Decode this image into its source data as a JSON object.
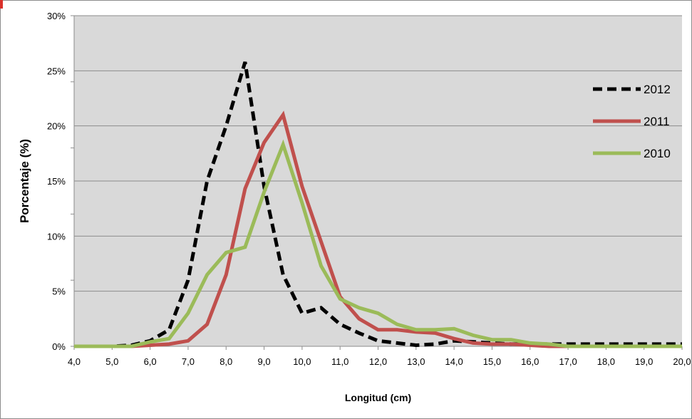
{
  "chart_data": {
    "type": "line",
    "title": "",
    "xlabel": "Longitud (cm)",
    "ylabel": "Porcentaje (%)",
    "x": [
      4.0,
      4.5,
      5.0,
      5.5,
      6.0,
      6.5,
      7.0,
      7.5,
      8.0,
      8.5,
      9.0,
      9.5,
      10.0,
      10.5,
      11.0,
      11.5,
      12.0,
      12.5,
      13.0,
      13.5,
      14.0,
      14.5,
      15.0,
      15.5,
      16.0,
      16.5,
      17.0,
      17.5,
      18.0,
      18.5,
      19.0,
      19.5,
      20.0
    ],
    "x_tick_labels": [
      "4,0",
      "5,0",
      "6,0",
      "7,0",
      "8,0",
      "9,0",
      "10,0",
      "11,0",
      "12,0",
      "13,0",
      "14,0",
      "15,0",
      "16,0",
      "17,0",
      "18,0",
      "19,0",
      "20,0"
    ],
    "y_tick_labels": [
      "0%",
      "5%",
      "10%",
      "15%",
      "20%",
      "25%",
      "30%"
    ],
    "xlim": [
      4.0,
      20.0
    ],
    "ylim": [
      0,
      30
    ],
    "grid": "horizontal",
    "plot_background": "#d9d9d9",
    "legend_position": "right",
    "series": [
      {
        "name": "2012",
        "color": "#000000",
        "dash": "dashed",
        "values": [
          0,
          0,
          0,
          0.1,
          0.5,
          1.5,
          6.0,
          15.0,
          20.0,
          25.8,
          14.5,
          6.5,
          3.0,
          3.5,
          2.0,
          1.2,
          0.5,
          0.3,
          0.1,
          0.2,
          0.5,
          0.4,
          0.3,
          0.2,
          0.2,
          0.2,
          0.2,
          0.2,
          0.2,
          0.2,
          0.2,
          0.2,
          0.2
        ]
      },
      {
        "name": "2011",
        "color": "#c0504d",
        "dash": "solid",
        "values": [
          0,
          0,
          0,
          0,
          0.1,
          0.2,
          0.5,
          2.0,
          6.5,
          14.3,
          18.5,
          21.0,
          14.5,
          9.5,
          4.5,
          2.5,
          1.5,
          1.5,
          1.3,
          1.2,
          0.7,
          0.3,
          0.2,
          0.2,
          0.1,
          0,
          0,
          0,
          0,
          0,
          0,
          0,
          0
        ]
      },
      {
        "name": "2010",
        "color": "#9bbb59",
        "dash": "solid",
        "values": [
          0,
          0,
          0,
          0,
          0.4,
          0.7,
          3.0,
          6.5,
          8.5,
          9.0,
          14.0,
          18.3,
          13.0,
          7.3,
          4.3,
          3.5,
          3.0,
          2.0,
          1.5,
          1.5,
          1.6,
          1.0,
          0.6,
          0.6,
          0.3,
          0.2,
          0,
          0,
          0,
          0,
          0,
          0,
          0
        ]
      }
    ]
  }
}
